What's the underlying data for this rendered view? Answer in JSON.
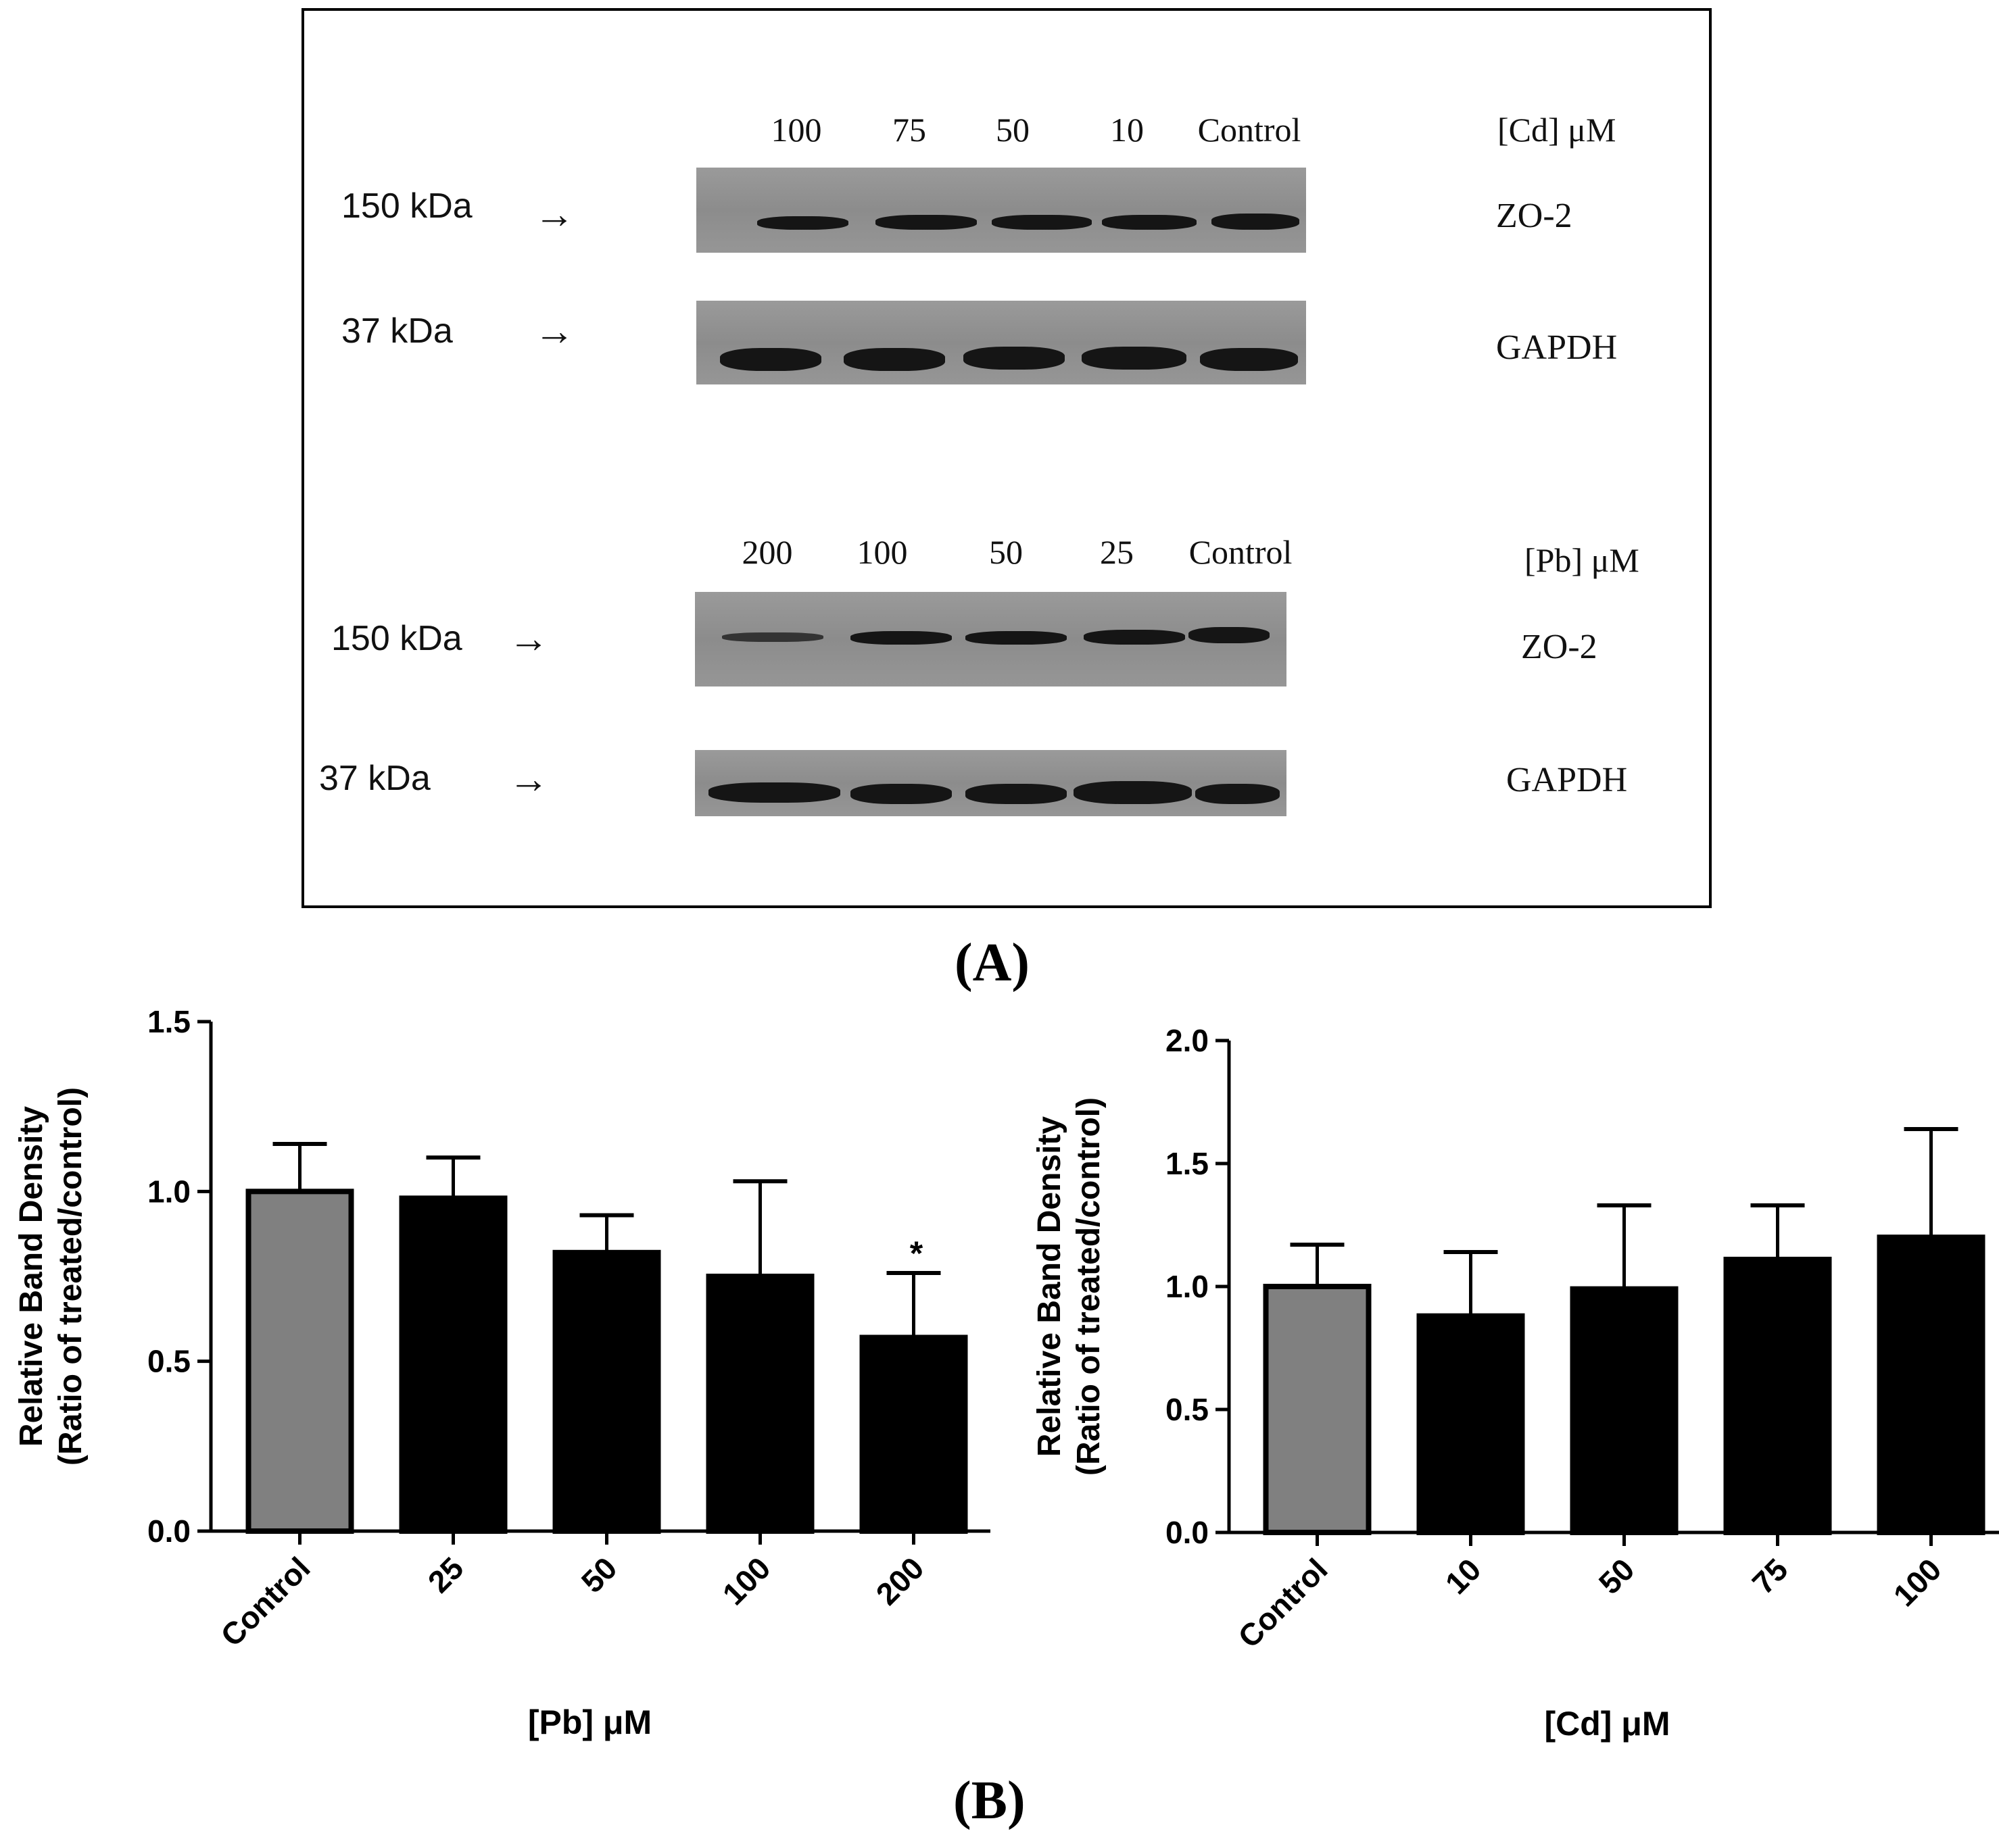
{
  "panel_a": {
    "label": "(A)",
    "cd_blot": {
      "lanes": [
        "100",
        "75",
        "50",
        "10",
        "Control"
      ],
      "condition": "[Cd] μM",
      "zo2": {
        "marker": "150 kDa",
        "protein": "ZO-2"
      },
      "gapdh": {
        "marker": "37 kDa",
        "protein": "GAPDH"
      }
    },
    "pb_blot": {
      "lanes": [
        "200",
        "100",
        "50",
        "25",
        "Control"
      ],
      "condition": "[Pb] μM",
      "zo2": {
        "marker": "150 kDa",
        "protein": "ZO-2"
      },
      "gapdh": {
        "marker": "37 kDa",
        "protein": "GAPDH"
      }
    },
    "arrow_glyph": "→"
  },
  "panel_b": {
    "label": "(B)"
  },
  "colors": {
    "control_bar": "#808080",
    "treated_bar": "#000000"
  },
  "chart_data": [
    {
      "type": "bar",
      "categories": [
        "Control",
        "25",
        "50",
        "100",
        "200"
      ],
      "values": [
        1.0,
        0.98,
        0.82,
        0.75,
        0.57
      ],
      "error_upper": [
        0.14,
        0.12,
        0.11,
        0.28,
        0.19
      ],
      "annotations": [
        "",
        "",
        "",
        "",
        "*"
      ],
      "xlabel": "[Pb] μM",
      "ylabel_line1": "Relative Band Density",
      "ylabel_line2": "(Ratio of treated/control)",
      "ylim": [
        0,
        1.5
      ],
      "yticks": [
        "0.0",
        "0.5",
        "1.0",
        "1.5"
      ],
      "ytick_values": [
        0,
        0.5,
        1.0,
        1.5
      ]
    },
    {
      "type": "bar",
      "categories": [
        "Control",
        "10",
        "50",
        "75",
        "100"
      ],
      "values": [
        1.0,
        0.88,
        0.99,
        1.11,
        1.2
      ],
      "error_upper": [
        0.17,
        0.26,
        0.34,
        0.22,
        0.44
      ],
      "annotations": [
        "",
        "",
        "",
        "",
        ""
      ],
      "xlabel": "[Cd] μM",
      "ylabel_line1": "Relative Band Density",
      "ylabel_line2": "(Ratio of treated/control)",
      "ylim": [
        0,
        2.0
      ],
      "yticks": [
        "0.0",
        "0.5",
        "1.0",
        "1.5",
        "2.0"
      ],
      "ytick_values": [
        0,
        0.5,
        1.0,
        1.5,
        2.0
      ]
    }
  ]
}
